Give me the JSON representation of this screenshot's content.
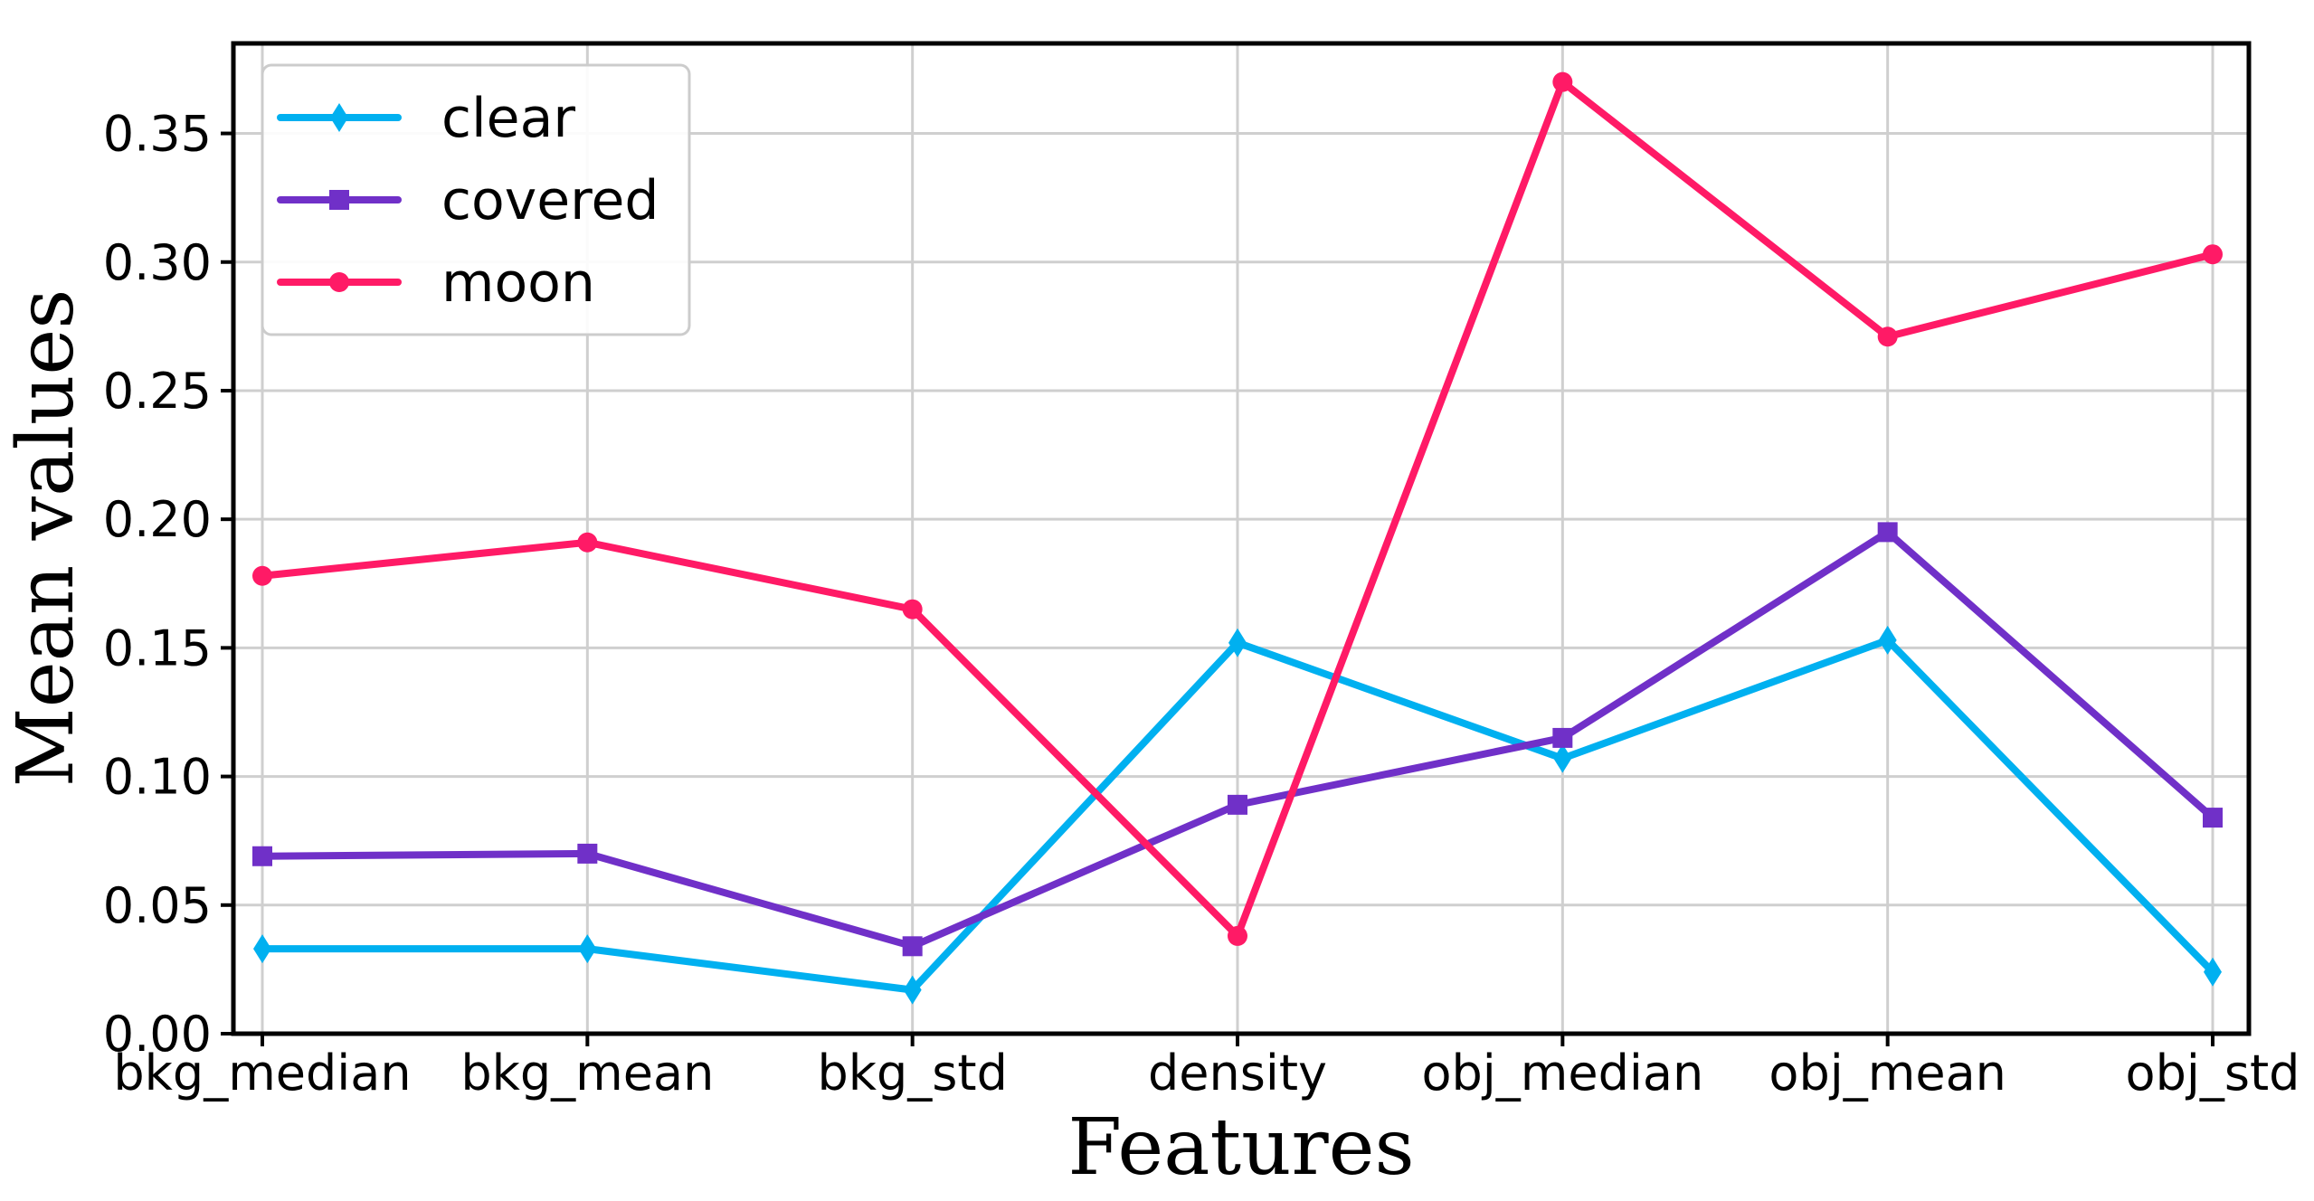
{
  "chart_data": {
    "type": "line",
    "categories": [
      "bkg_median",
      "bkg_mean",
      "bkg_std",
      "density",
      "obj_median",
      "obj_mean",
      "obj_std"
    ],
    "series": [
      {
        "name": "clear",
        "color": "#00b0f0",
        "marker": "diamond",
        "values": [
          0.033,
          0.033,
          0.017,
          0.152,
          0.107,
          0.153,
          0.024
        ]
      },
      {
        "name": "covered",
        "color": "#7030c8",
        "marker": "square",
        "values": [
          0.069,
          0.07,
          0.034,
          0.089,
          0.115,
          0.195,
          0.084
        ]
      },
      {
        "name": "moon",
        "color": "#ff1a66",
        "marker": "circle",
        "values": [
          0.178,
          0.191,
          0.165,
          0.038,
          0.37,
          0.271,
          0.303
        ]
      }
    ],
    "xlabel": "Features",
    "ylabel": "Mean values",
    "ylim": [
      0.0,
      0.385
    ],
    "yticks": [
      "0.00",
      "0.05",
      "0.10",
      "0.15",
      "0.20",
      "0.25",
      "0.30",
      "0.35"
    ],
    "grid": true,
    "legend": "upper-left"
  }
}
